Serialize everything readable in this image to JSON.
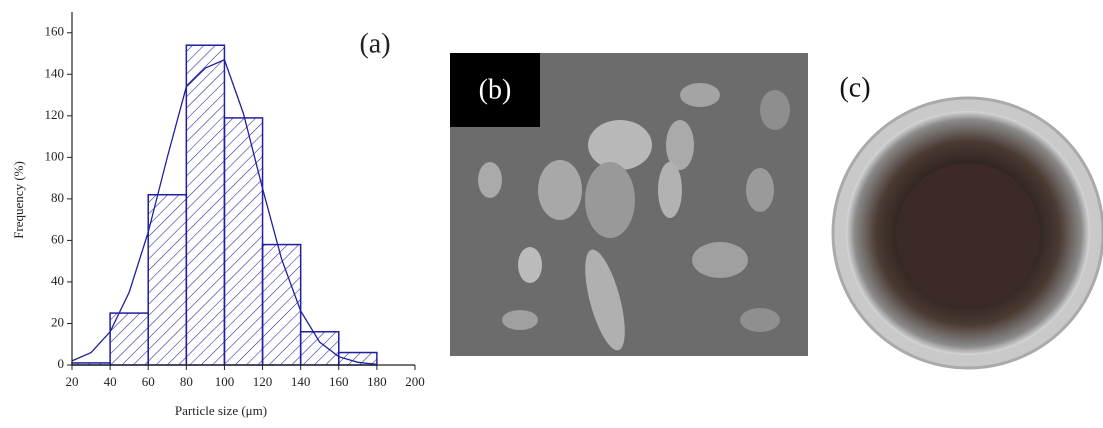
{
  "chart_data": {
    "type": "histogram",
    "annotation": "(a)",
    "xlabel": "Particle size (μm)",
    "ylabel": "Frequency (%)",
    "bins": [
      20,
      40,
      60,
      80,
      100,
      120,
      140,
      160,
      180
    ],
    "values": [
      1,
      25,
      82,
      154,
      119,
      58,
      16,
      6
    ],
    "color": "#1f1fa0",
    "curve": {
      "x": [
        20,
        30,
        40,
        50,
        60,
        70,
        80,
        90,
        100,
        110,
        120,
        130,
        140,
        150,
        160,
        170,
        180
      ],
      "values": [
        2,
        6,
        16,
        35,
        64,
        100,
        134,
        143,
        147,
        121,
        85,
        51,
        26,
        11,
        4,
        1.3,
        0.3
      ],
      "color": "#1f1fa0"
    },
    "xlim": [
      20,
      200
    ],
    "ylim": [
      0,
      170
    ],
    "xticks": [
      20,
      40,
      60,
      80,
      100,
      120,
      140,
      160,
      180,
      200
    ],
    "yticks": [
      0,
      20,
      40,
      60,
      80,
      100,
      120,
      140,
      160
    ]
  },
  "panels": [
    {
      "label": "(b)"
    },
    {
      "label": "(c)"
    }
  ]
}
